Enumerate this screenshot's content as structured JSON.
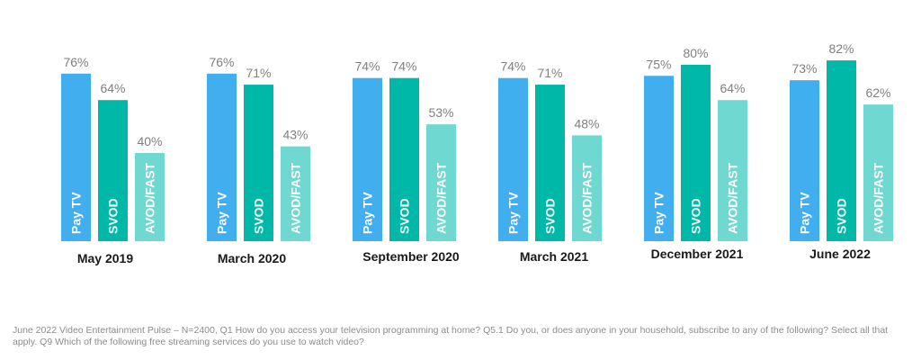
{
  "chart_data": {
    "type": "bar",
    "title": "",
    "xlabel": "",
    "ylabel": "",
    "ylim": [
      0,
      100
    ],
    "grid": false,
    "legend": "none",
    "categories": [
      "May 2019",
      "March 2020",
      "September 2020",
      "March 2021",
      "December 2021",
      "June 2022"
    ],
    "series": [
      {
        "name": "Pay TV",
        "color": "#41aef0",
        "values": [
          76,
          76,
          74,
          74,
          75,
          73
        ]
      },
      {
        "name": "SVOD",
        "color": "#00b8a8",
        "values": [
          64,
          71,
          74,
          71,
          80,
          82
        ]
      },
      {
        "name": "AVOD/FAST",
        "color": "#6fd9d1",
        "values": [
          40,
          43,
          53,
          48,
          64,
          62
        ]
      }
    ],
    "value_suffix": "%"
  },
  "footnote": "June 2022 Video Entertainment Pulse – N=2400, Q1 How do you access your television programming at home? Q5.1 Do you, or does anyone in your household, subscribe to any of the following? Select all that apply. Q9 Which of the following free streaming services do you use to watch video?"
}
